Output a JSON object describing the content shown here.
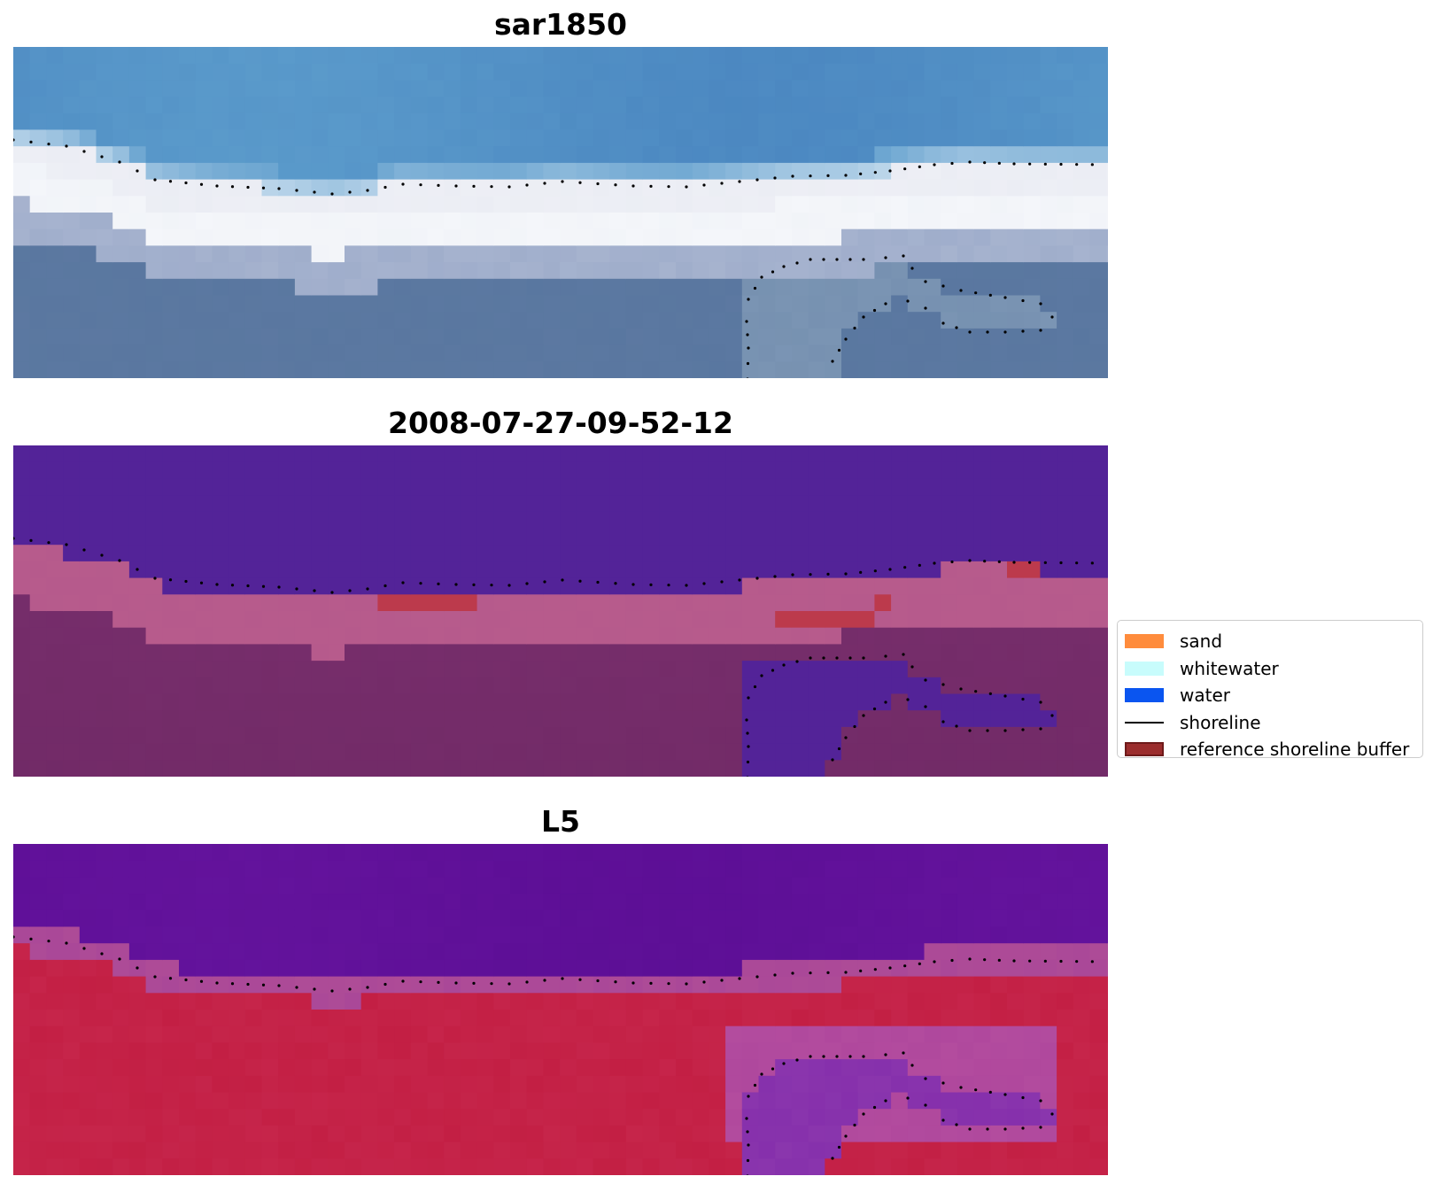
{
  "panels": [
    {
      "id": "rgb",
      "title": "sar1850"
    },
    {
      "id": "classified",
      "title": "2008-07-27-09-52-12"
    },
    {
      "id": "index",
      "title": "L5"
    }
  ],
  "legend": {
    "items": [
      {
        "label": "sand",
        "kind": "patch",
        "color": "#ff8c3c"
      },
      {
        "label": "whitewater",
        "kind": "patch",
        "color": "#c8fcfc"
      },
      {
        "label": "water",
        "kind": "patch",
        "color": "#0a55f0"
      },
      {
        "label": "shoreline",
        "kind": "line",
        "color": "#000000"
      },
      {
        "label": "reference shoreline buffer",
        "kind": "patch",
        "color": "#9b2d2d",
        "edge": "#6e1a1a"
      }
    ]
  },
  "colors": {
    "sky_blue": "#4f8fc4",
    "surf_white": "#eef0f4",
    "land_slate": "#5a7aa0",
    "class_water": "#532398",
    "class_land": "#7a306e",
    "class_band": "#b65a8c",
    "class_buffer": "#bc3a4c",
    "index_purple": "#5f1098",
    "index_red": "#c0183c",
    "shoreline_dots": "#000000"
  }
}
